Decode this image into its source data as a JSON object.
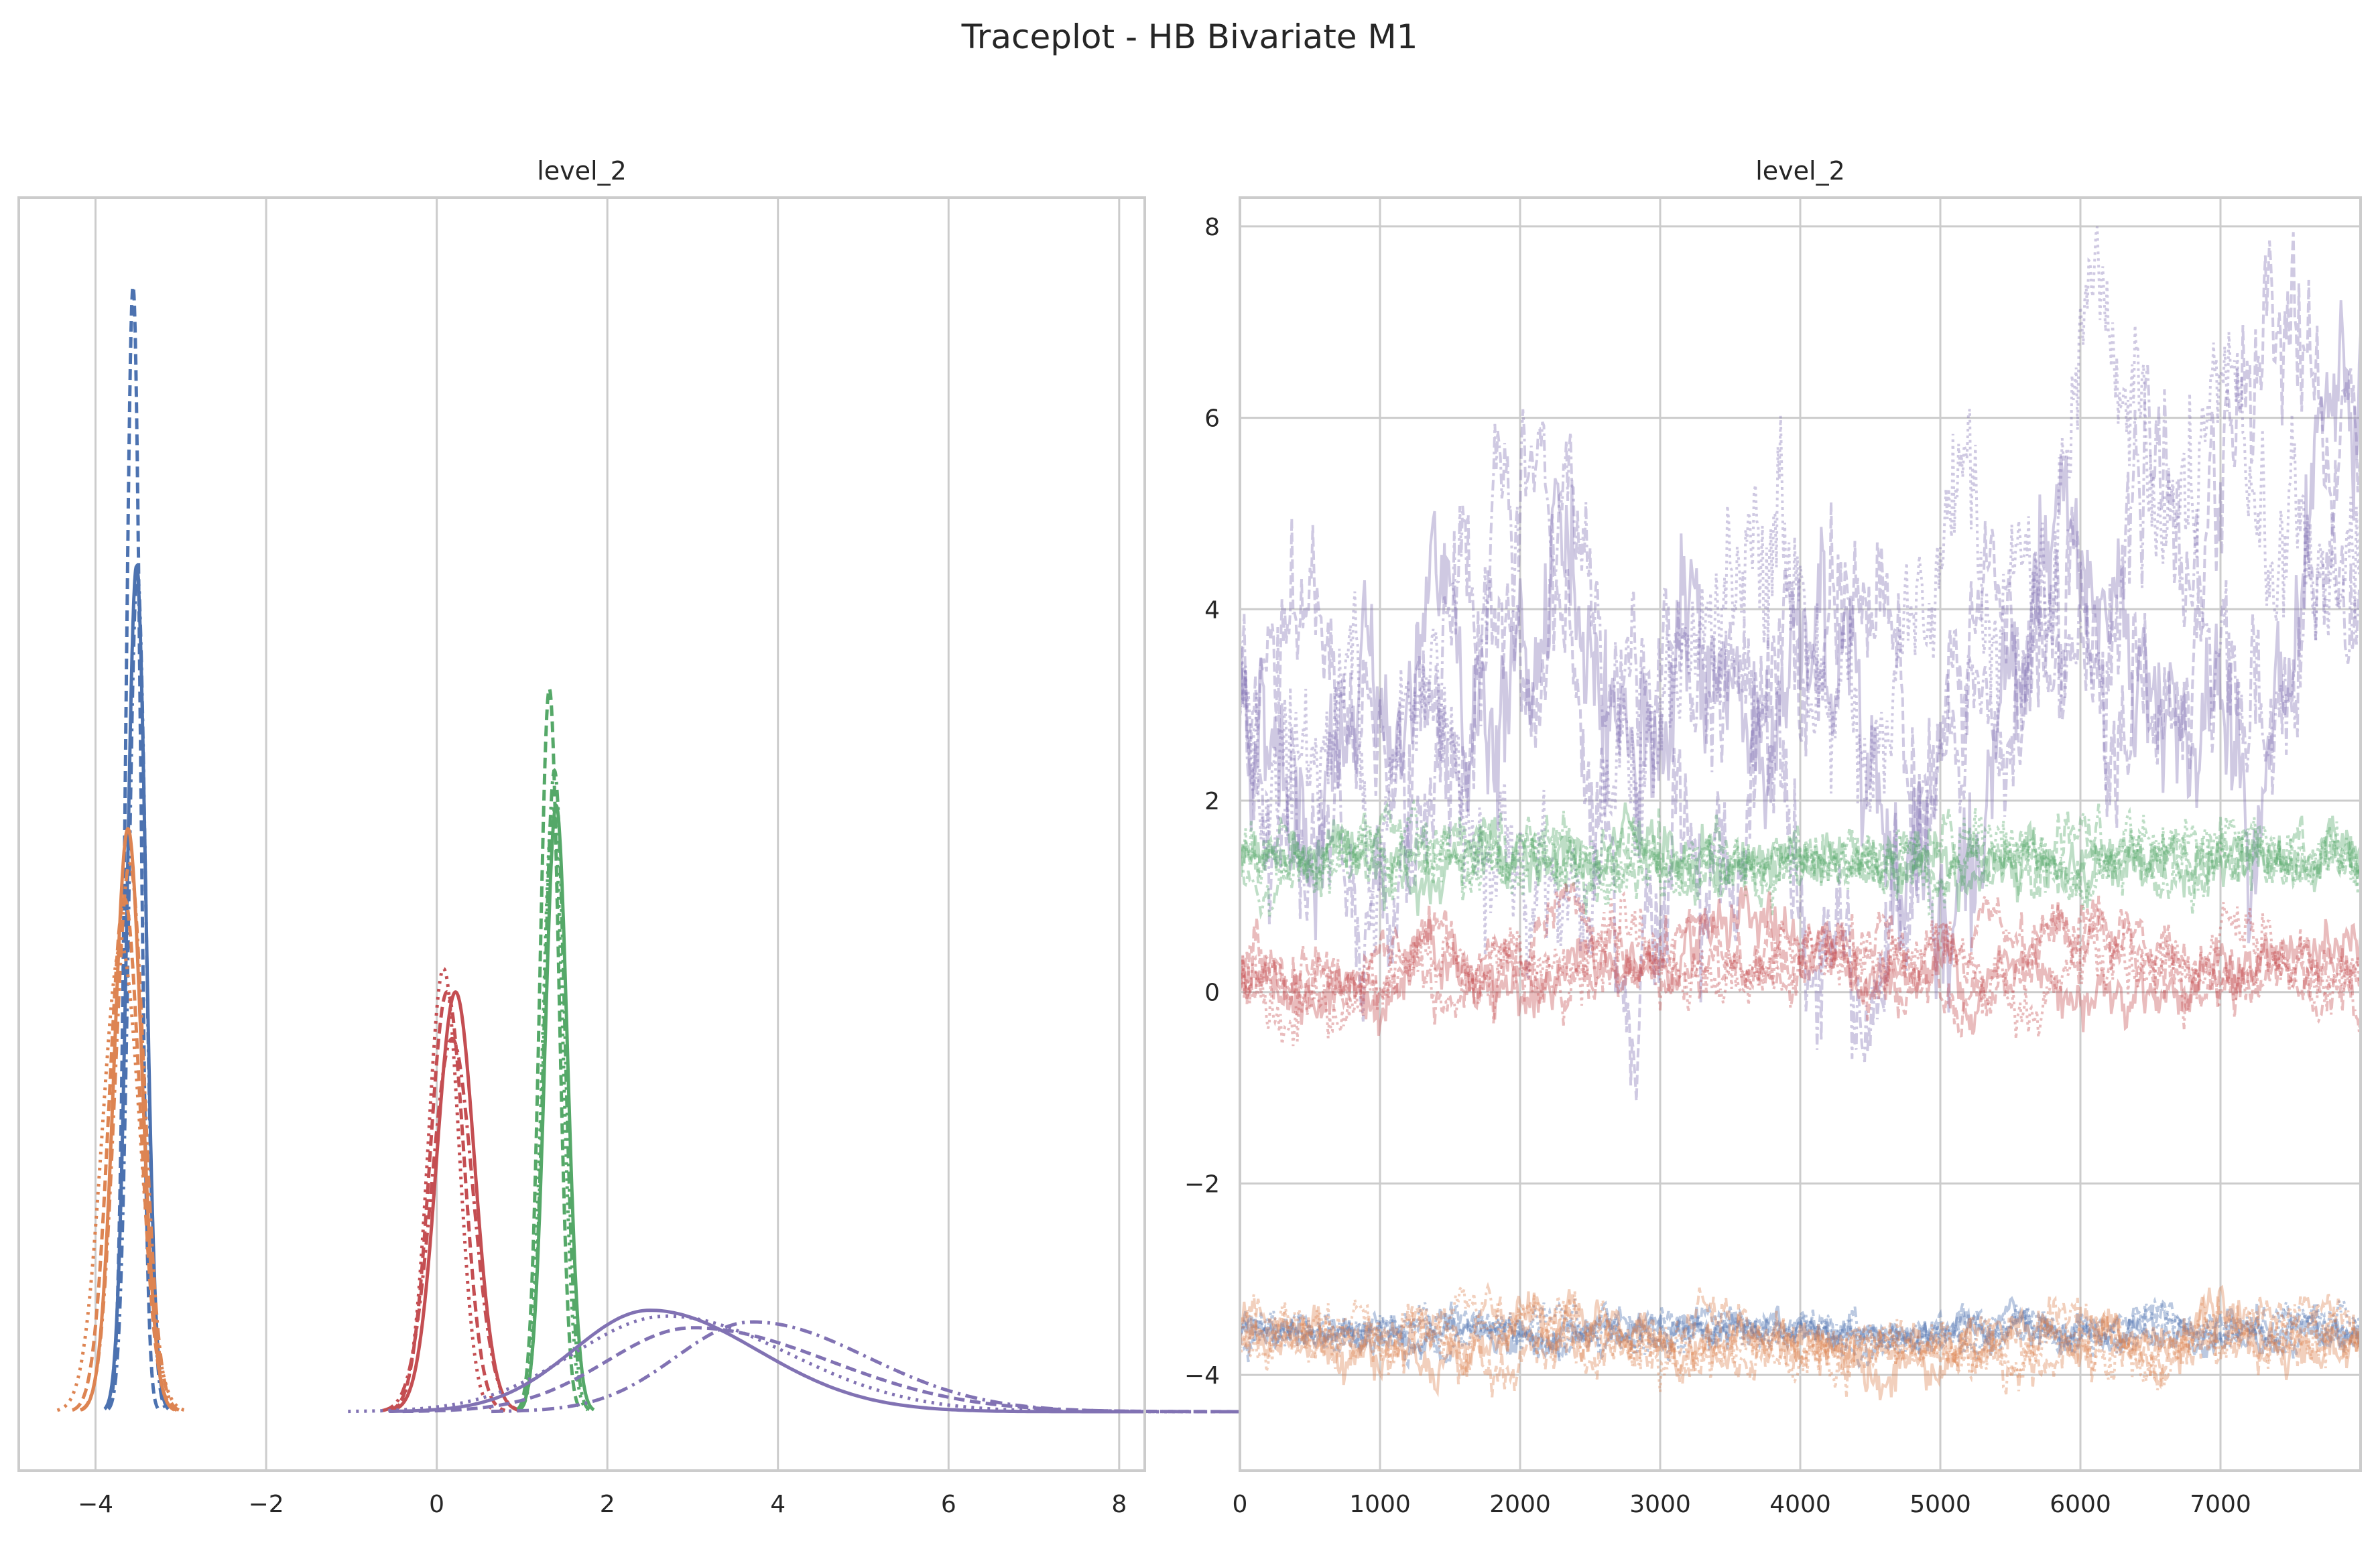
{
  "figure": {
    "title": "Traceplot - HB Bivariate M1"
  },
  "colors": {
    "blue": "#4c72b0",
    "orange": "#dd8452",
    "green": "#55a868",
    "red": "#c44e52",
    "purple": "#8172b3",
    "grid": "#cccccc",
    "text": "#262626"
  },
  "chart_data": [
    {
      "type": "line",
      "subtype": "kde",
      "title": "level_2",
      "xlabel": "",
      "ylabel": "",
      "xlim": [
        -4.9,
        8.3
      ],
      "x_ticks": [
        -4,
        -2,
        0,
        2,
        4,
        6,
        8
      ],
      "x_tick_labels": [
        "−4",
        "−2",
        "0",
        "2",
        "4",
        "6",
        "8"
      ],
      "y_ticks": [],
      "ylim": [
        0,
        1
      ],
      "grid": "vertical",
      "legend": "none",
      "series": [
        {
          "color": "blue",
          "linestyle": "solid",
          "mu": -3.52,
          "sigma": 0.11,
          "peak": 0.725
        },
        {
          "color": "blue",
          "linestyle": "dashed",
          "mu": -3.56,
          "sigma": 0.085,
          "peak": 0.965
        },
        {
          "color": "blue",
          "linestyle": "dashdot",
          "mu": -3.51,
          "sigma": 0.1,
          "peak": 0.72
        },
        {
          "color": "orange",
          "linestyle": "solid",
          "mu": -3.62,
          "sigma": 0.16,
          "peak": 0.5
        },
        {
          "color": "orange",
          "linestyle": "dashed",
          "mu": -3.66,
          "sigma": 0.18,
          "peak": 0.44
        },
        {
          "color": "orange",
          "linestyle": "dotted",
          "mu": -3.7,
          "sigma": 0.22,
          "peak": 0.4
        },
        {
          "color": "orange",
          "linestyle": "dashdot",
          "mu": -3.6,
          "sigma": 0.17,
          "peak": 0.47
        },
        {
          "color": "red",
          "linestyle": "solid",
          "mu": 0.22,
          "sigma": 0.22,
          "peak": 0.36
        },
        {
          "color": "red",
          "linestyle": "dashed",
          "mu": 0.12,
          "sigma": 0.2,
          "peak": 0.36
        },
        {
          "color": "red",
          "linestyle": "dotted",
          "mu": 0.08,
          "sigma": 0.18,
          "peak": 0.38
        },
        {
          "color": "red",
          "linestyle": "dashdot",
          "mu": 0.18,
          "sigma": 0.24,
          "peak": 0.32
        },
        {
          "color": "green",
          "linestyle": "solid",
          "mu": 1.4,
          "sigma": 0.13,
          "peak": 0.52
        },
        {
          "color": "green",
          "linestyle": "dashed",
          "mu": 1.32,
          "sigma": 0.11,
          "peak": 0.62
        },
        {
          "color": "green",
          "linestyle": "dotted",
          "mu": 1.36,
          "sigma": 0.12,
          "peak": 0.52
        },
        {
          "color": "green",
          "linestyle": "dashdot",
          "mu": 1.38,
          "sigma": 0.12,
          "peak": 0.55
        },
        {
          "color": "purple",
          "linestyle": "solid",
          "mu": 2.5,
          "sigma": 0.9,
          "peak": 0.087,
          "tail": 1.4
        },
        {
          "color": "purple",
          "linestyle": "dashed",
          "mu": 3.0,
          "sigma": 1.0,
          "peak": 0.072,
          "tail": 1.6
        },
        {
          "color": "purple",
          "linestyle": "dotted",
          "mu": 2.7,
          "sigma": 1.1,
          "peak": 0.082,
          "tail": 1.3
        },
        {
          "color": "purple",
          "linestyle": "dashdot",
          "mu": 3.7,
          "sigma": 0.9,
          "peak": 0.077,
          "tail": 1.5
        }
      ]
    },
    {
      "type": "line",
      "subtype": "trace",
      "title": "level_2",
      "xlabel": "",
      "ylabel": "",
      "xlim": [
        0,
        8000
      ],
      "ylim": [
        -5,
        8.3
      ],
      "x_ticks": [
        0,
        1000,
        2000,
        3000,
        4000,
        5000,
        6000,
        7000
      ],
      "x_tick_labels": [
        "0",
        "1000",
        "2000",
        "3000",
        "4000",
        "5000",
        "6000",
        "7000"
      ],
      "y_ticks": [
        -4,
        -2,
        0,
        2,
        4,
        6,
        8
      ],
      "y_tick_labels": [
        "−4",
        "−2",
        "0",
        "2",
        "4",
        "6",
        "8"
      ],
      "grid": "both",
      "legend": "none",
      "series": [
        {
          "color": "purple",
          "mean": 3.2,
          "spread": 1.4,
          "rho": 0.985,
          "noise": 0.28
        },
        {
          "color": "green",
          "mean": 1.38,
          "spread": 0.17,
          "rho": 0.9,
          "noise": 0.09
        },
        {
          "color": "red",
          "mean": 0.25,
          "spread": 0.25,
          "rho": 0.96,
          "noise": 0.1
        },
        {
          "color": "blue",
          "mean": -3.55,
          "spread": 0.1,
          "rho": 0.9,
          "noise": 0.05
        },
        {
          "color": "orange",
          "mean": -3.65,
          "spread": 0.18,
          "rho": 0.94,
          "noise": 0.08
        }
      ]
    }
  ]
}
